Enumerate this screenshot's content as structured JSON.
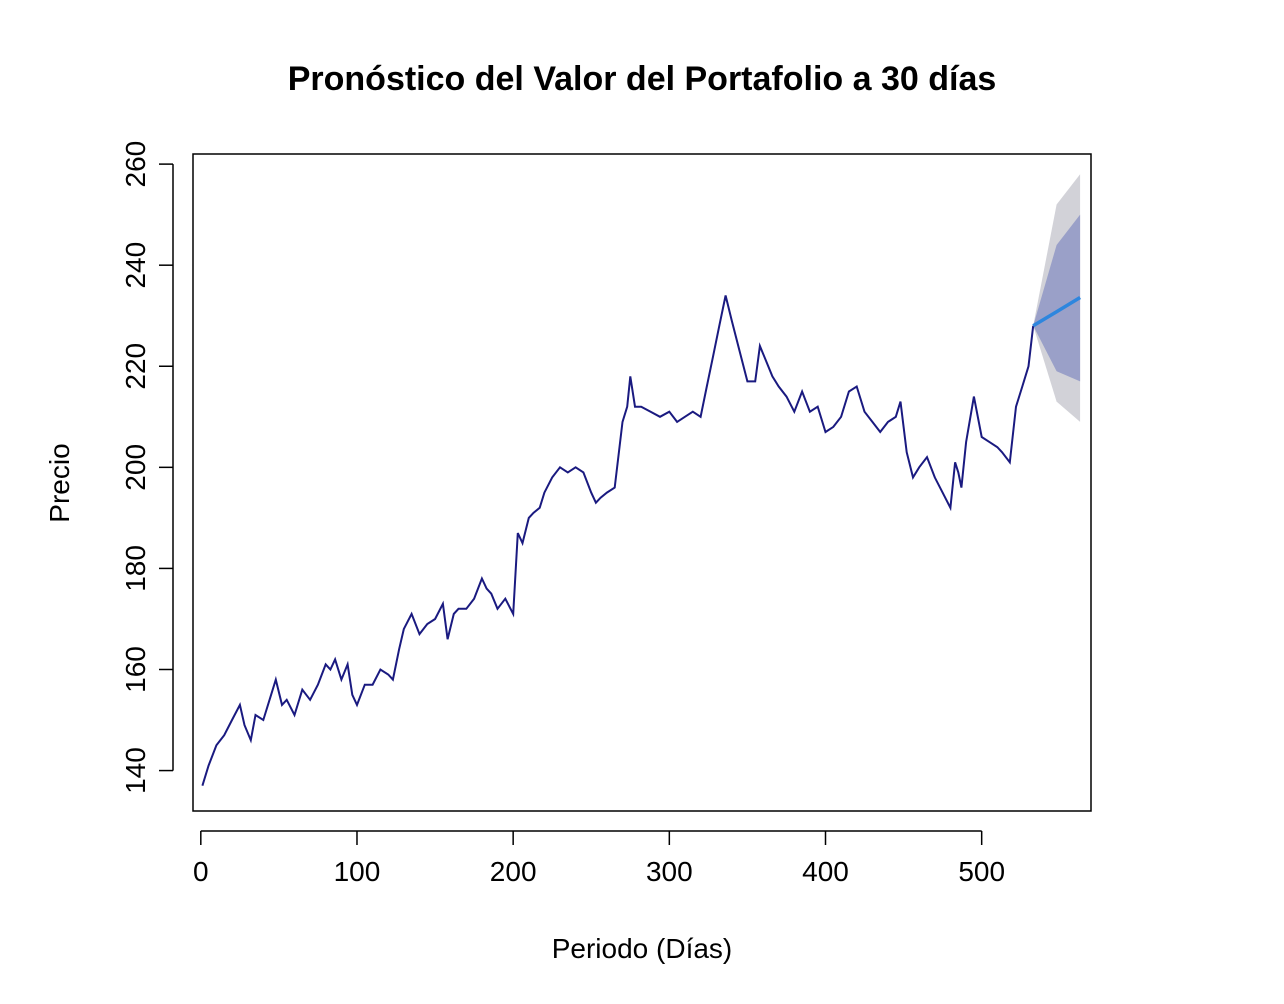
{
  "chart_data": {
    "type": "line",
    "title": "Pronóstico del Valor del Portafolio a 30 días",
    "xlabel": "Periodo (Días)",
    "ylabel": "Precio",
    "xlim": [
      -5,
      570
    ],
    "ylim": [
      132,
      262
    ],
    "x_ticks": [
      0,
      100,
      200,
      300,
      400,
      500
    ],
    "y_ticks": [
      140,
      160,
      180,
      200,
      220,
      240,
      260
    ],
    "grid": false,
    "legend": "none",
    "colors": {
      "history": "#1a1a80",
      "forecast": "#2e86de",
      "band80": "#9aa0c8",
      "band95": "#d2d2d8"
    },
    "series": [
      {
        "x": [
          1,
          5,
          10,
          15,
          20,
          25,
          28,
          32,
          35,
          40,
          45,
          48,
          52,
          55,
          60,
          65,
          70,
          75,
          80,
          83,
          86,
          90,
          94,
          97,
          100,
          105,
          110,
          115,
          120,
          123,
          127,
          130,
          135,
          140,
          145,
          150,
          155,
          158,
          162,
          165,
          170,
          175,
          180,
          183,
          186,
          190,
          195,
          200,
          203,
          206,
          210,
          213,
          217,
          220,
          225,
          230,
          235,
          240,
          245,
          250,
          253,
          256,
          260,
          265,
          270,
          273,
          275,
          278,
          282,
          288,
          294,
          300,
          305,
          310,
          315,
          320,
          324,
          328,
          332,
          336,
          340,
          345,
          350,
          355,
          358,
          362,
          366,
          370,
          375,
          380,
          385,
          390,
          395,
          400,
          405,
          410,
          415,
          420,
          425,
          430,
          435,
          440,
          445,
          448,
          452,
          456,
          460,
          465,
          470,
          475,
          480,
          483,
          485,
          487,
          490,
          495,
          500,
          505,
          510,
          513,
          518,
          522,
          526,
          530,
          533
        ],
        "values": [
          137,
          141,
          145,
          147,
          150,
          153,
          149,
          146,
          151,
          150,
          155,
          158,
          153,
          154,
          151,
          156,
          154,
          157,
          161,
          160,
          162,
          158,
          161,
          155,
          153,
          157,
          157,
          160,
          159,
          158,
          164,
          168,
          171,
          167,
          169,
          170,
          173,
          166,
          171,
          172,
          172,
          174,
          178,
          176,
          175,
          172,
          174,
          171,
          187,
          185,
          190,
          191,
          192,
          195,
          198,
          200,
          199,
          200,
          199,
          195,
          193,
          194,
          195,
          196,
          209,
          212,
          218,
          212,
          212,
          211,
          210,
          211,
          209,
          210,
          211,
          210,
          216,
          222,
          228,
          234,
          229,
          223,
          217,
          217,
          224,
          221,
          218,
          216,
          214,
          211,
          215,
          211,
          212,
          207,
          208,
          210,
          215,
          216,
          211,
          209,
          207,
          209,
          210,
          213,
          203,
          198,
          200,
          202,
          198,
          195,
          192,
          201,
          199,
          196,
          205,
          214,
          206,
          205,
          204,
          203,
          201,
          212,
          216,
          220,
          228
        ]
      }
    ],
    "forecast": {
      "x": [
        533,
        548,
        563
      ],
      "values": [
        228,
        230.8,
        233.6
      ],
      "lo80": [
        228,
        219,
        217
      ],
      "hi80": [
        228,
        244,
        250
      ],
      "lo95": [
        228,
        213,
        209
      ],
      "hi95": [
        228,
        252,
        258
      ]
    }
  }
}
